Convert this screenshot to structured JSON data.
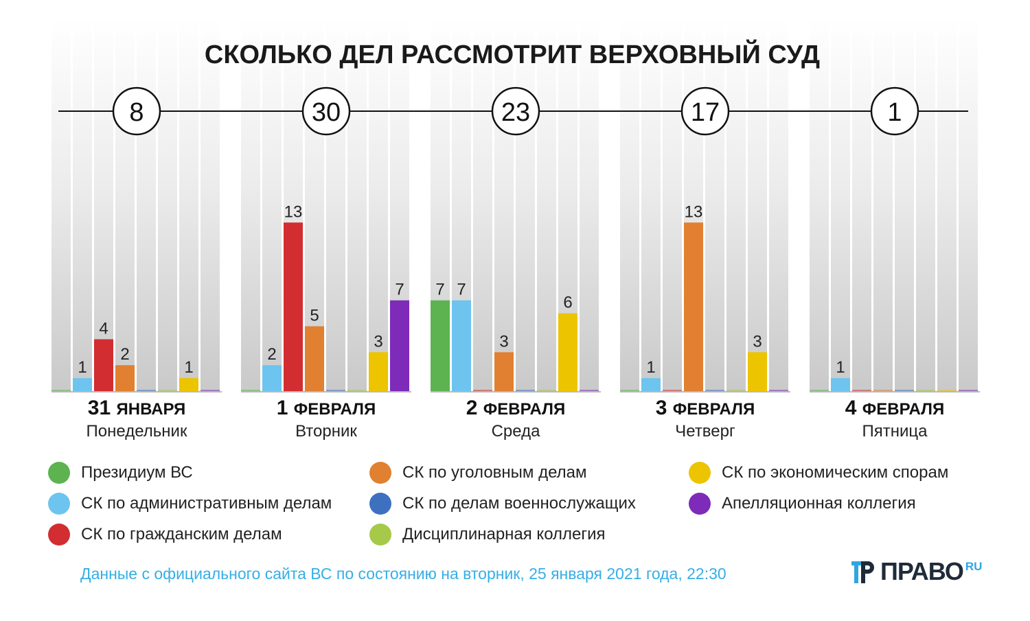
{
  "title": "СКОЛЬКО ДЕЛ РАССМОТРИТ ВЕРХОВНЫЙ СУД",
  "colors": {
    "presidium": "#5cb350",
    "admin": "#6dc4ef",
    "civil": "#d22d30",
    "criminal": "#e08030",
    "military": "#3e70c0",
    "disciplinary": "#a6c94a",
    "economic": "#ecc400",
    "appeal": "#7d2bb8"
  },
  "legend": [
    {
      "key": "presidium",
      "label": "Президиум ВС"
    },
    {
      "key": "admin",
      "label": "СК по административным делам"
    },
    {
      "key": "civil",
      "label": "СК по гражданским делам"
    },
    {
      "key": "criminal",
      "label": "СК по уголовным делам"
    },
    {
      "key": "military",
      "label": "СК по делам военнослужащих"
    },
    {
      "key": "disciplinary",
      "label": "Дисциплинарная коллегия"
    },
    {
      "key": "economic",
      "label": "СК по экономическим спорам"
    },
    {
      "key": "appeal",
      "label": "Апелляционная коллегия"
    }
  ],
  "chart_data": {
    "type": "bar",
    "title": "СКОЛЬКО ДЕЛ РАССМОТРИТ ВЕРХОВНЫЙ СУД",
    "categories": [
      "Президиум ВС",
      "СК по административным делам",
      "СК по гражданским делам",
      "СК по уголовным делам",
      "СК по делам военнослужащих",
      "Дисциплинарная коллегия",
      "СК по экономическим спорам",
      "Апелляционная коллегия"
    ],
    "category_keys": [
      "presidium",
      "admin",
      "civil",
      "criminal",
      "military",
      "disciplinary",
      "economic",
      "appeal"
    ],
    "groups": [
      {
        "date_num": "31",
        "date_month": "ЯНВАРЯ",
        "weekday": "Понедельник",
        "total": "8",
        "values": [
          0,
          1,
          4,
          2,
          0,
          0,
          1,
          0
        ]
      },
      {
        "date_num": "1",
        "date_month": "ФЕВРАЛЯ",
        "weekday": "Вторник",
        "total": "30",
        "values": [
          0,
          2,
          13,
          5,
          0,
          0,
          3,
          7
        ]
      },
      {
        "date_num": "2",
        "date_month": "ФЕВРАЛЯ",
        "weekday": "Среда",
        "total": "23",
        "values": [
          7,
          7,
          0,
          3,
          0,
          0,
          6,
          0
        ]
      },
      {
        "date_num": "3",
        "date_month": "ФЕВРАЛЯ",
        "weekday": "Четверг",
        "total": "17",
        "values": [
          0,
          1,
          0,
          13,
          0,
          0,
          3,
          0
        ]
      },
      {
        "date_num": "4",
        "date_month": "ФЕВРАЛЯ",
        "weekday": "Пятница",
        "total": "1",
        "values": [
          0,
          1,
          0,
          0,
          0,
          0,
          0,
          0
        ]
      }
    ],
    "ylim": [
      0,
      13
    ],
    "legend_position": "bottom"
  },
  "source": "Данные с официального сайта ВС по состоянию на вторник, 25 января 2021 года, 22:30",
  "brand": {
    "name": "ПРАВО",
    "suffix": "RU"
  }
}
